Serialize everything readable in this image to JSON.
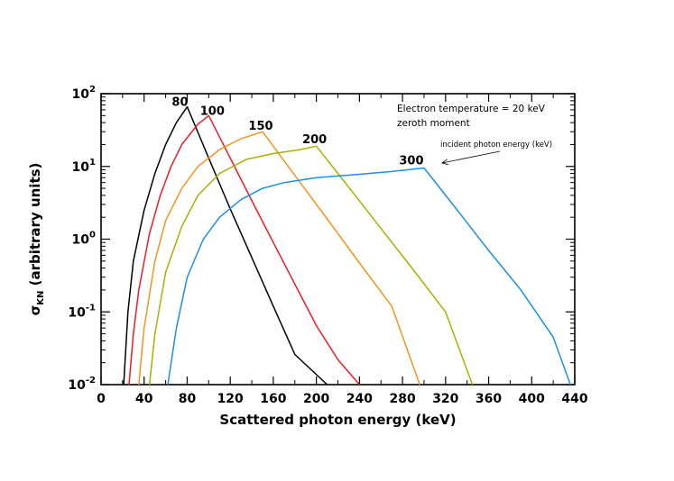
{
  "chart_data": {
    "type": "line",
    "xlabel": "Scattered photon energy (keV)",
    "ylabel_main": "σ",
    "ylabel_sub": "KN",
    "ylabel_rest": " (arbitrary units)",
    "xlim": [
      0,
      440
    ],
    "ylim": [
      0.01,
      100
    ],
    "yscale": "log",
    "grid": false,
    "x_ticks": [
      0,
      40,
      80,
      120,
      160,
      200,
      240,
      280,
      320,
      360,
      400,
      440
    ],
    "x_tick_labels": [
      "0",
      "40",
      "80",
      "120",
      "160",
      "200",
      "240",
      "280",
      "320",
      "360",
      "400",
      "440"
    ],
    "y_ticks": [
      {
        "value": 0.01,
        "base": "10",
        "exp": "-2"
      },
      {
        "value": 0.1,
        "base": "10",
        "exp": "-1"
      },
      {
        "value": 1,
        "base": "10",
        "exp": "0"
      },
      {
        "value": 10,
        "base": "10",
        "exp": "1"
      },
      {
        "value": 100,
        "base": "10",
        "exp": "2"
      }
    ],
    "annotations": {
      "line1": "Electron temperature = 20 keV",
      "line2": "zeroth moment",
      "arrow_note": "incident photon energy (keV)"
    },
    "series": [
      {
        "label": "80",
        "color": "#000000",
        "points": [
          [
            21,
            0.01
          ],
          [
            25,
            0.1
          ],
          [
            30,
            0.5
          ],
          [
            40,
            2.5
          ],
          [
            50,
            8
          ],
          [
            60,
            20
          ],
          [
            70,
            40
          ],
          [
            80,
            66
          ],
          [
            100,
            13
          ],
          [
            120,
            2.6
          ],
          [
            140,
            0.56
          ],
          [
            160,
            0.12
          ],
          [
            180,
            0.026
          ],
          [
            210,
            0.01
          ]
        ]
      },
      {
        "label": "100",
        "color": "#ee1c25",
        "points": [
          [
            26,
            0.01
          ],
          [
            30,
            0.05
          ],
          [
            35,
            0.2
          ],
          [
            45,
            1.2
          ],
          [
            55,
            4
          ],
          [
            65,
            10
          ],
          [
            75,
            20
          ],
          [
            90,
            38
          ],
          [
            100,
            50
          ],
          [
            120,
            13
          ],
          [
            140,
            3.4
          ],
          [
            160,
            0.9
          ],
          [
            180,
            0.24
          ],
          [
            200,
            0.065
          ],
          [
            220,
            0.022
          ],
          [
            240,
            0.01
          ]
        ]
      },
      {
        "label": "150",
        "color": "#f7941d",
        "points": [
          [
            35,
            0.01
          ],
          [
            40,
            0.06
          ],
          [
            50,
            0.5
          ],
          [
            60,
            1.8
          ],
          [
            75,
            5
          ],
          [
            90,
            10
          ],
          [
            110,
            17
          ],
          [
            130,
            24
          ],
          [
            150,
            30
          ],
          [
            180,
            7.5
          ],
          [
            210,
            1.9
          ],
          [
            240,
            0.47
          ],
          [
            270,
            0.12
          ],
          [
            296,
            0.01
          ]
        ]
      },
      {
        "label": "200",
        "color": "#a8b000",
        "points": [
          [
            45,
            0.01
          ],
          [
            50,
            0.05
          ],
          [
            60,
            0.35
          ],
          [
            75,
            1.5
          ],
          [
            90,
            4
          ],
          [
            110,
            8
          ],
          [
            135,
            12.5
          ],
          [
            160,
            15
          ],
          [
            185,
            17
          ],
          [
            200,
            19
          ],
          [
            230,
            5.2
          ],
          [
            260,
            1.4
          ],
          [
            290,
            0.38
          ],
          [
            320,
            0.1
          ],
          [
            345,
            0.01
          ]
        ]
      },
      {
        "label": "300",
        "color": "#1e90e0",
        "points": [
          [
            62,
            0.01
          ],
          [
            70,
            0.06
          ],
          [
            80,
            0.3
          ],
          [
            95,
            1
          ],
          [
            110,
            2
          ],
          [
            130,
            3.5
          ],
          [
            150,
            5
          ],
          [
            170,
            6
          ],
          [
            200,
            7
          ],
          [
            240,
            7.8
          ],
          [
            270,
            8.5
          ],
          [
            300,
            9.5
          ],
          [
            330,
            2.6
          ],
          [
            360,
            0.7
          ],
          [
            390,
            0.2
          ],
          [
            420,
            0.045
          ],
          [
            436,
            0.01
          ]
        ]
      }
    ]
  }
}
